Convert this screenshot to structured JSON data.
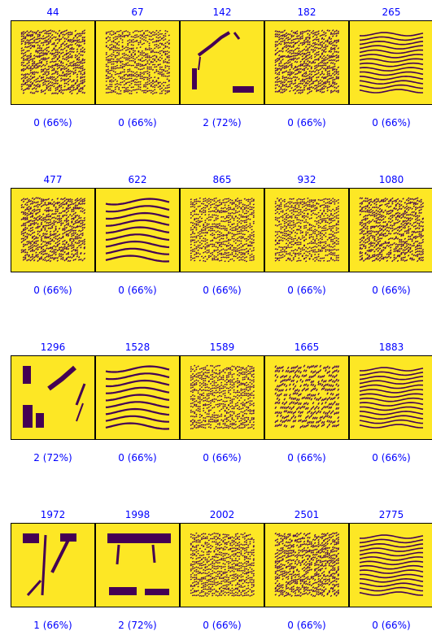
{
  "colors": {
    "background": "#fde725",
    "ink": "#440154",
    "text": "#0000ff"
  },
  "panels": [
    {
      "title": "44",
      "caption": "0 (66%)",
      "pattern": "diag-dense"
    },
    {
      "title": "67",
      "caption": "0 (66%)",
      "pattern": "dense"
    },
    {
      "title": "142",
      "caption": "2 (72%)",
      "pattern": "sparse-a"
    },
    {
      "title": "182",
      "caption": "0 (66%)",
      "pattern": "diag-dense"
    },
    {
      "title": "265",
      "caption": "0 (66%)",
      "pattern": "waves"
    },
    {
      "title": "477",
      "caption": "0 (66%)",
      "pattern": "diag-dense"
    },
    {
      "title": "622",
      "caption": "0 (66%)",
      "pattern": "waves-wide"
    },
    {
      "title": "865",
      "caption": "0 (66%)",
      "pattern": "dense"
    },
    {
      "title": "932",
      "caption": "0 (66%)",
      "pattern": "dense"
    },
    {
      "title": "1080",
      "caption": "0 (66%)",
      "pattern": "diag-dense"
    },
    {
      "title": "1296",
      "caption": "2 (72%)",
      "pattern": "sparse-b"
    },
    {
      "title": "1528",
      "caption": "0 (66%)",
      "pattern": "waves-wide"
    },
    {
      "title": "1589",
      "caption": "0 (66%)",
      "pattern": "dense"
    },
    {
      "title": "1665",
      "caption": "0 (66%)",
      "pattern": "diag-strong"
    },
    {
      "title": "1883",
      "caption": "0 (66%)",
      "pattern": "waves"
    },
    {
      "title": "1972",
      "caption": "1 (66%)",
      "pattern": "sparse-c"
    },
    {
      "title": "1998",
      "caption": "2 (72%)",
      "pattern": "sparse-d"
    },
    {
      "title": "2002",
      "caption": "0 (66%)",
      "pattern": "dense"
    },
    {
      "title": "2501",
      "caption": "0 (66%)",
      "pattern": "diag-dense"
    },
    {
      "title": "2775",
      "caption": "0 (66%)",
      "pattern": "waves"
    }
  ]
}
